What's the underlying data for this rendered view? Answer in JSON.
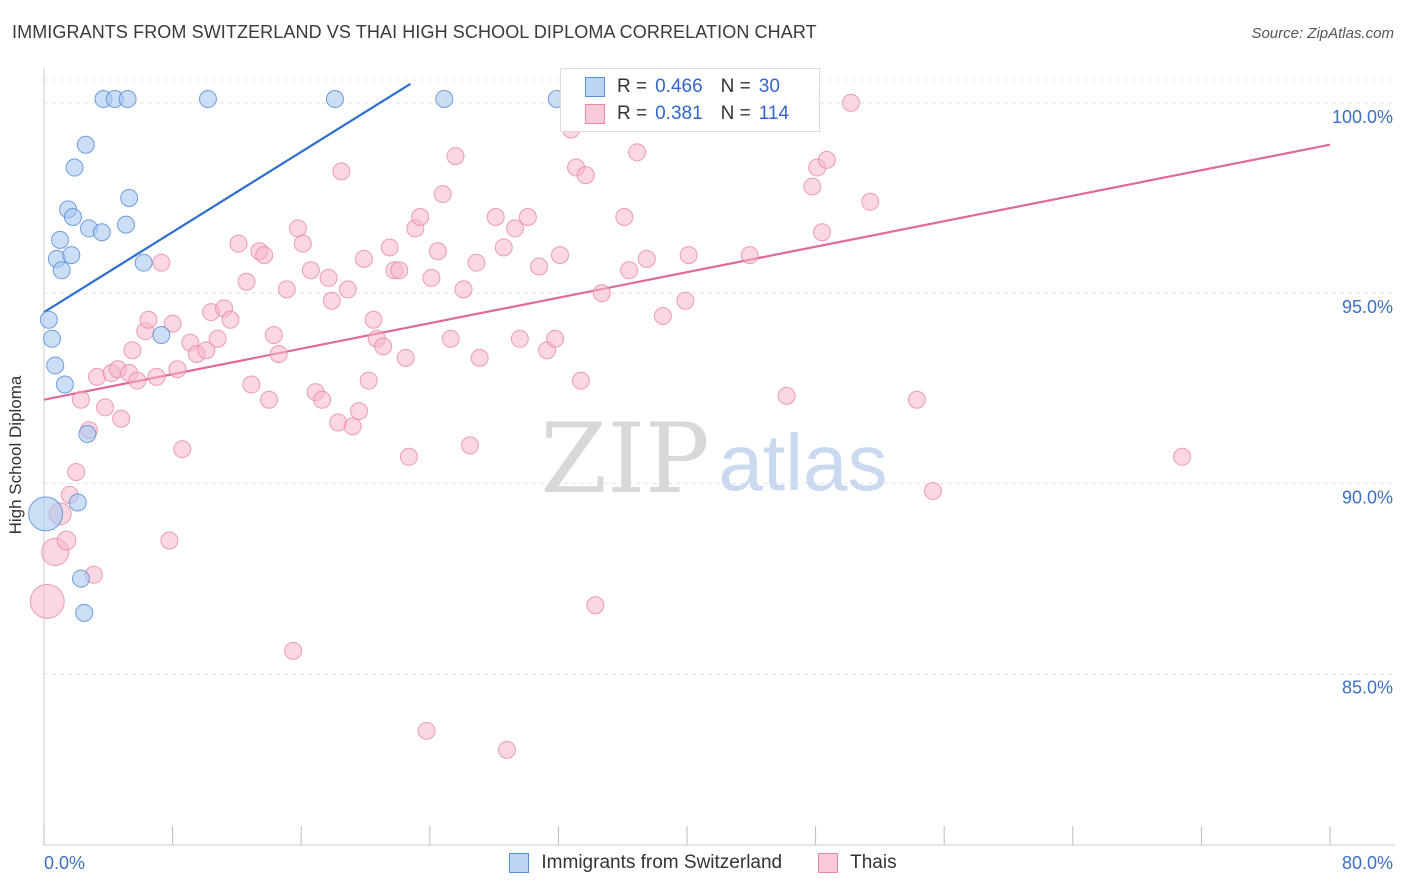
{
  "title": "IMMIGRANTS FROM SWITZERLAND VS THAI HIGH SCHOOL DIPLOMA CORRELATION CHART",
  "source": "Source: ZipAtlas.com",
  "watermark": {
    "zip": "ZIP",
    "atlas": "atlas"
  },
  "legend": {
    "rows": [
      {
        "r_label": "R =",
        "r_value": "0.466",
        "n_label": "N =",
        "n_value": "30"
      },
      {
        "r_label": "R =",
        "r_value": "0.381",
        "n_label": "N =",
        "n_value": "114"
      }
    ]
  },
  "bottom_legend": {
    "series1": "Immigrants from Switzerland",
    "series2": "Thais"
  },
  "colors": {
    "blue_fill": "#a9c8f0",
    "blue_stroke": "#5a8fd6",
    "blue_line": "#2d6fcf",
    "pink_fill": "#f5b7cb",
    "pink_stroke": "#e887a8",
    "pink_line": "#e0689a",
    "axis_text": "#3d6fc4",
    "grid": "#e3e3e3"
  },
  "chart_data": {
    "type": "scatter",
    "title": "IMMIGRANTS FROM SWITZERLAND VS THAI HIGH SCHOOL DIPLOMA CORRELATION CHART",
    "xlabel": "",
    "ylabel": "High School Diploma",
    "xlim": [
      0,
      80
    ],
    "ylim": [
      80.5,
      100.6
    ],
    "x_tick_labels": [
      "0.0%",
      "80.0%"
    ],
    "y_ticks": [
      85,
      90,
      95,
      100
    ],
    "y_tick_labels": [
      "85.0%",
      "90.0%",
      "95.0%",
      "100.0%"
    ],
    "series": [
      {
        "name": "Immigrants from Switzerland",
        "color": "blue",
        "r": 0.466,
        "n": 30,
        "trend": {
          "x0": 0.0,
          "y0": 94.5,
          "x1": 22.8,
          "y1": 100.5
        },
        "points": [
          {
            "x": 0.3,
            "y": 94.3,
            "s": 1
          },
          {
            "x": 0.5,
            "y": 93.8,
            "s": 1
          },
          {
            "x": 0.7,
            "y": 93.1,
            "s": 1
          },
          {
            "x": 0.8,
            "y": 95.9,
            "s": 1
          },
          {
            "x": 1.0,
            "y": 96.4,
            "s": 1
          },
          {
            "x": 1.1,
            "y": 95.6,
            "s": 1
          },
          {
            "x": 1.3,
            "y": 92.6,
            "s": 1
          },
          {
            "x": 1.5,
            "y": 97.2,
            "s": 1
          },
          {
            "x": 1.7,
            "y": 96.0,
            "s": 1
          },
          {
            "x": 1.8,
            "y": 97.0,
            "s": 1
          },
          {
            "x": 1.9,
            "y": 98.3,
            "s": 1
          },
          {
            "x": 2.1,
            "y": 89.5,
            "s": 1
          },
          {
            "x": 2.3,
            "y": 87.5,
            "s": 1
          },
          {
            "x": 2.5,
            "y": 86.6,
            "s": 1
          },
          {
            "x": 2.6,
            "y": 98.9,
            "s": 1
          },
          {
            "x": 2.7,
            "y": 91.3,
            "s": 1
          },
          {
            "x": 2.8,
            "y": 96.7,
            "s": 1
          },
          {
            "x": 3.6,
            "y": 96.6,
            "s": 1
          },
          {
            "x": 3.7,
            "y": 100.1,
            "s": 1
          },
          {
            "x": 4.4,
            "y": 100.1,
            "s": 1
          },
          {
            "x": 5.2,
            "y": 100.1,
            "s": 1
          },
          {
            "x": 5.1,
            "y": 96.8,
            "s": 1
          },
          {
            "x": 5.3,
            "y": 97.5,
            "s": 1
          },
          {
            "x": 6.2,
            "y": 95.8,
            "s": 1
          },
          {
            "x": 7.3,
            "y": 93.9,
            "s": 1
          },
          {
            "x": 10.2,
            "y": 100.1,
            "s": 1
          },
          {
            "x": 18.1,
            "y": 100.1,
            "s": 1
          },
          {
            "x": 24.9,
            "y": 100.1,
            "s": 1
          },
          {
            "x": 31.9,
            "y": 100.1,
            "s": 1
          },
          {
            "x": 0.1,
            "y": 89.2,
            "s": 2
          }
        ]
      },
      {
        "name": "Thais",
        "color": "pink",
        "r": 0.381,
        "n": 114,
        "trend": {
          "x0": 0.0,
          "y0": 92.2,
          "x1": 80.0,
          "y1": 98.9
        },
        "points": [
          {
            "x": 0.2,
            "y": 86.9,
            "s": 2
          },
          {
            "x": 0.7,
            "y": 88.2,
            "s": 1.6
          },
          {
            "x": 1.0,
            "y": 89.2,
            "s": 1.3
          },
          {
            "x": 1.4,
            "y": 88.5,
            "s": 1.1
          },
          {
            "x": 1.6,
            "y": 89.7,
            "s": 1
          },
          {
            "x": 2.0,
            "y": 90.3,
            "s": 1
          },
          {
            "x": 2.3,
            "y": 92.2,
            "s": 1
          },
          {
            "x": 2.8,
            "y": 91.4,
            "s": 1
          },
          {
            "x": 3.1,
            "y": 87.6,
            "s": 1
          },
          {
            "x": 3.3,
            "y": 92.8,
            "s": 1
          },
          {
            "x": 3.8,
            "y": 92.0,
            "s": 1
          },
          {
            "x": 4.2,
            "y": 92.9,
            "s": 1
          },
          {
            "x": 4.6,
            "y": 93.0,
            "s": 1
          },
          {
            "x": 4.8,
            "y": 91.7,
            "s": 1
          },
          {
            "x": 5.3,
            "y": 92.9,
            "s": 1
          },
          {
            "x": 5.5,
            "y": 93.5,
            "s": 1
          },
          {
            "x": 5.8,
            "y": 92.7,
            "s": 1
          },
          {
            "x": 6.3,
            "y": 94.0,
            "s": 1
          },
          {
            "x": 6.5,
            "y": 94.3,
            "s": 1
          },
          {
            "x": 7.0,
            "y": 92.8,
            "s": 1
          },
          {
            "x": 7.3,
            "y": 95.8,
            "s": 1
          },
          {
            "x": 7.8,
            "y": 88.5,
            "s": 1
          },
          {
            "x": 8.0,
            "y": 94.2,
            "s": 1
          },
          {
            "x": 8.3,
            "y": 93.0,
            "s": 1
          },
          {
            "x": 8.6,
            "y": 90.9,
            "s": 1
          },
          {
            "x": 9.1,
            "y": 93.7,
            "s": 1
          },
          {
            "x": 9.5,
            "y": 93.4,
            "s": 1
          },
          {
            "x": 10.1,
            "y": 93.5,
            "s": 1
          },
          {
            "x": 10.4,
            "y": 94.5,
            "s": 1
          },
          {
            "x": 10.8,
            "y": 93.8,
            "s": 1
          },
          {
            "x": 11.2,
            "y": 94.6,
            "s": 1
          },
          {
            "x": 11.6,
            "y": 94.3,
            "s": 1
          },
          {
            "x": 12.1,
            "y": 96.3,
            "s": 1
          },
          {
            "x": 12.6,
            "y": 95.3,
            "s": 1
          },
          {
            "x": 12.9,
            "y": 92.6,
            "s": 1
          },
          {
            "x": 13.4,
            "y": 96.1,
            "s": 1
          },
          {
            "x": 13.7,
            "y": 96.0,
            "s": 1
          },
          {
            "x": 14.0,
            "y": 92.2,
            "s": 1
          },
          {
            "x": 14.3,
            "y": 93.9,
            "s": 1
          },
          {
            "x": 14.6,
            "y": 93.4,
            "s": 1
          },
          {
            "x": 15.1,
            "y": 95.1,
            "s": 1
          },
          {
            "x": 15.5,
            "y": 85.6,
            "s": 1
          },
          {
            "x": 15.8,
            "y": 96.7,
            "s": 1
          },
          {
            "x": 16.1,
            "y": 96.3,
            "s": 1
          },
          {
            "x": 16.6,
            "y": 95.6,
            "s": 1
          },
          {
            "x": 16.9,
            "y": 92.4,
            "s": 1
          },
          {
            "x": 17.3,
            "y": 92.2,
            "s": 1
          },
          {
            "x": 17.7,
            "y": 95.4,
            "s": 1
          },
          {
            "x": 17.9,
            "y": 94.8,
            "s": 1
          },
          {
            "x": 18.3,
            "y": 91.6,
            "s": 1
          },
          {
            "x": 18.5,
            "y": 98.2,
            "s": 1
          },
          {
            "x": 18.9,
            "y": 95.1,
            "s": 1
          },
          {
            "x": 19.2,
            "y": 91.5,
            "s": 1
          },
          {
            "x": 19.6,
            "y": 91.9,
            "s": 1
          },
          {
            "x": 19.9,
            "y": 95.9,
            "s": 1
          },
          {
            "x": 20.2,
            "y": 92.7,
            "s": 1
          },
          {
            "x": 20.5,
            "y": 94.3,
            "s": 1
          },
          {
            "x": 20.7,
            "y": 93.8,
            "s": 1
          },
          {
            "x": 21.1,
            "y": 93.6,
            "s": 1
          },
          {
            "x": 21.5,
            "y": 96.2,
            "s": 1
          },
          {
            "x": 21.8,
            "y": 95.6,
            "s": 1
          },
          {
            "x": 22.1,
            "y": 95.6,
            "s": 1
          },
          {
            "x": 22.5,
            "y": 93.3,
            "s": 1
          },
          {
            "x": 22.7,
            "y": 90.7,
            "s": 1
          },
          {
            "x": 23.1,
            "y": 96.7,
            "s": 1
          },
          {
            "x": 23.4,
            "y": 97.0,
            "s": 1
          },
          {
            "x": 23.8,
            "y": 83.5,
            "s": 1
          },
          {
            "x": 24.1,
            "y": 95.4,
            "s": 1
          },
          {
            "x": 24.5,
            "y": 96.1,
            "s": 1
          },
          {
            "x": 24.8,
            "y": 97.6,
            "s": 1
          },
          {
            "x": 25.3,
            "y": 93.8,
            "s": 1
          },
          {
            "x": 25.6,
            "y": 98.6,
            "s": 1
          },
          {
            "x": 26.1,
            "y": 95.1,
            "s": 1
          },
          {
            "x": 26.5,
            "y": 91.0,
            "s": 1
          },
          {
            "x": 26.9,
            "y": 95.8,
            "s": 1
          },
          {
            "x": 27.1,
            "y": 93.3,
            "s": 1
          },
          {
            "x": 28.1,
            "y": 97.0,
            "s": 1
          },
          {
            "x": 28.6,
            "y": 96.2,
            "s": 1
          },
          {
            "x": 28.8,
            "y": 83.0,
            "s": 1
          },
          {
            "x": 29.3,
            "y": 96.7,
            "s": 1
          },
          {
            "x": 29.6,
            "y": 93.8,
            "s": 1
          },
          {
            "x": 30.1,
            "y": 97.0,
            "s": 1
          },
          {
            "x": 30.8,
            "y": 95.7,
            "s": 1
          },
          {
            "x": 31.3,
            "y": 93.5,
            "s": 1
          },
          {
            "x": 31.8,
            "y": 93.8,
            "s": 1
          },
          {
            "x": 32.1,
            "y": 96.0,
            "s": 1
          },
          {
            "x": 32.8,
            "y": 99.3,
            "s": 1
          },
          {
            "x": 33.1,
            "y": 98.3,
            "s": 1
          },
          {
            "x": 33.4,
            "y": 92.7,
            "s": 1
          },
          {
            "x": 33.7,
            "y": 98.1,
            "s": 1
          },
          {
            "x": 34.3,
            "y": 86.8,
            "s": 1
          },
          {
            "x": 34.7,
            "y": 95.0,
            "s": 1
          },
          {
            "x": 35.2,
            "y": 100.0,
            "s": 1
          },
          {
            "x": 36.1,
            "y": 97.0,
            "s": 1
          },
          {
            "x": 36.4,
            "y": 95.6,
            "s": 1
          },
          {
            "x": 36.9,
            "y": 98.7,
            "s": 1
          },
          {
            "x": 37.5,
            "y": 95.9,
            "s": 1
          },
          {
            "x": 38.5,
            "y": 94.4,
            "s": 1
          },
          {
            "x": 40.1,
            "y": 96.0,
            "s": 1
          },
          {
            "x": 39.9,
            "y": 94.8,
            "s": 1
          },
          {
            "x": 43.8,
            "y": 100.0,
            "s": 1
          },
          {
            "x": 43.9,
            "y": 96.0,
            "s": 1
          },
          {
            "x": 46.2,
            "y": 92.3,
            "s": 1
          },
          {
            "x": 47.8,
            "y": 97.8,
            "s": 1
          },
          {
            "x": 48.1,
            "y": 98.3,
            "s": 1
          },
          {
            "x": 48.4,
            "y": 96.6,
            "s": 1
          },
          {
            "x": 48.7,
            "y": 98.5,
            "s": 1
          },
          {
            "x": 50.2,
            "y": 100.0,
            "s": 1
          },
          {
            "x": 51.4,
            "y": 97.4,
            "s": 1
          },
          {
            "x": 54.3,
            "y": 92.2,
            "s": 1
          },
          {
            "x": 55.3,
            "y": 89.8,
            "s": 1
          },
          {
            "x": 70.8,
            "y": 90.7,
            "s": 1
          }
        ]
      }
    ]
  }
}
